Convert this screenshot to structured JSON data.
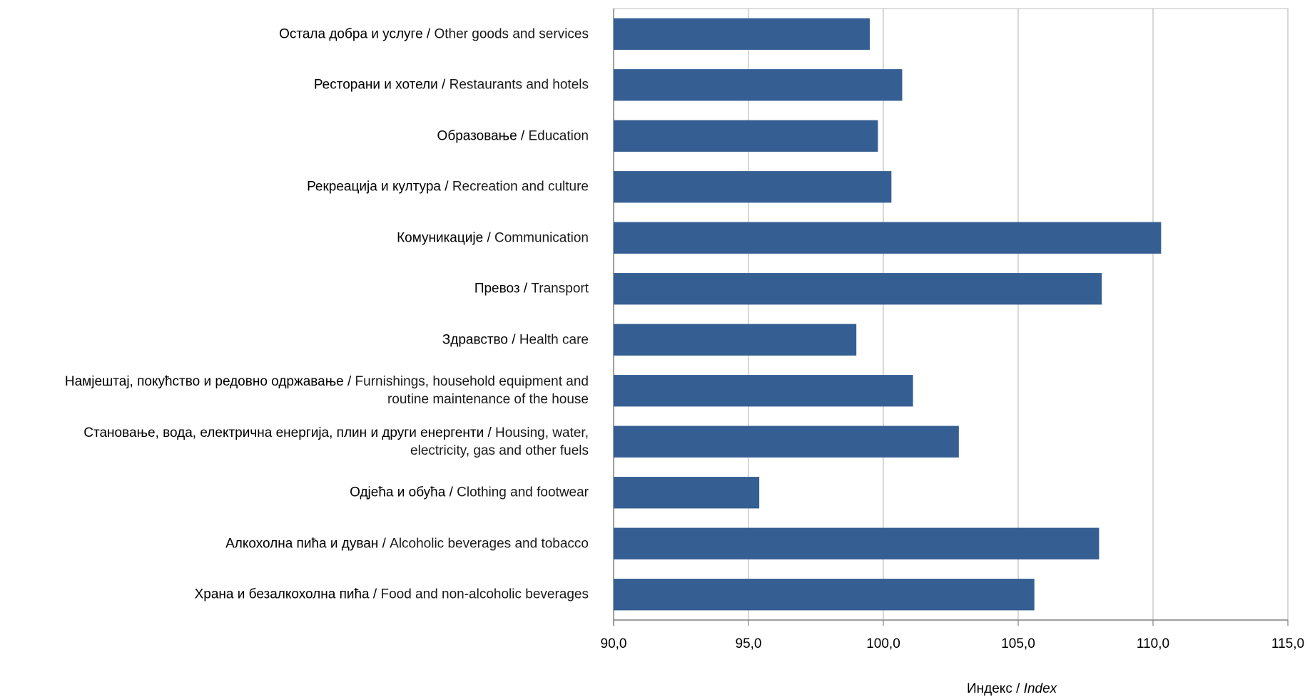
{
  "chart_data": {
    "type": "bar",
    "orientation": "horizontal",
    "categories": [
      {
        "local": "Храна и безалкохолна пића",
        "en": "Food and non-alcoholic beverages",
        "value": 105.6
      },
      {
        "local": "Алкохолна пића и дуван",
        "en": "Alcoholic beverages and tobacco",
        "value": 108.0
      },
      {
        "local": "Одјећа и обућа",
        "en": "Clothing and footwear",
        "value": 95.4
      },
      {
        "local": "Становање, вода, електрична енергија, плин и други енергенти",
        "en": "Housing, water, electricity, gas and other fuels",
        "line2": "electricity, gas and other fuels",
        "line1_en": "Housing, water,",
        "value": 102.8
      },
      {
        "local": "Намјештај, покућство и редовно одржавање",
        "en": "Furnishings, household equipment and routine maintenance of the house",
        "line1_en": "Furnishings, household equipment and",
        "line2": "routine maintenance of the house",
        "value": 101.1
      },
      {
        "local": "Здравство",
        "en": "Health care",
        "value": 99.0
      },
      {
        "local": "Превоз",
        "en": "Transport",
        "value": 108.1
      },
      {
        "local": "Комуникације",
        "en": "Communication",
        "value": 110.3
      },
      {
        "local": "Рекреација и култура",
        "en": "Recreation and culture",
        "value": 100.3
      },
      {
        "local": "Образовање",
        "en": "Education",
        "value": 99.8
      },
      {
        "local": "Ресторани и хотели",
        "en": "Restaurants and hotels",
        "value": 100.7
      },
      {
        "local": "Остала добра и услуге",
        "en": "Other goods and services",
        "value": 99.5
      }
    ],
    "x_ticks": [
      "90,0",
      "95,0",
      "100,0",
      "105,0",
      "110,0",
      "115,0"
    ],
    "xlim": [
      90,
      115
    ],
    "xlabel_local": "Индекс / ",
    "xlabel_en": "Index",
    "grid": "vertical",
    "bar_color": "#355F93",
    "grid_color": "#BFBFBF",
    "axis_color": "#808080"
  }
}
